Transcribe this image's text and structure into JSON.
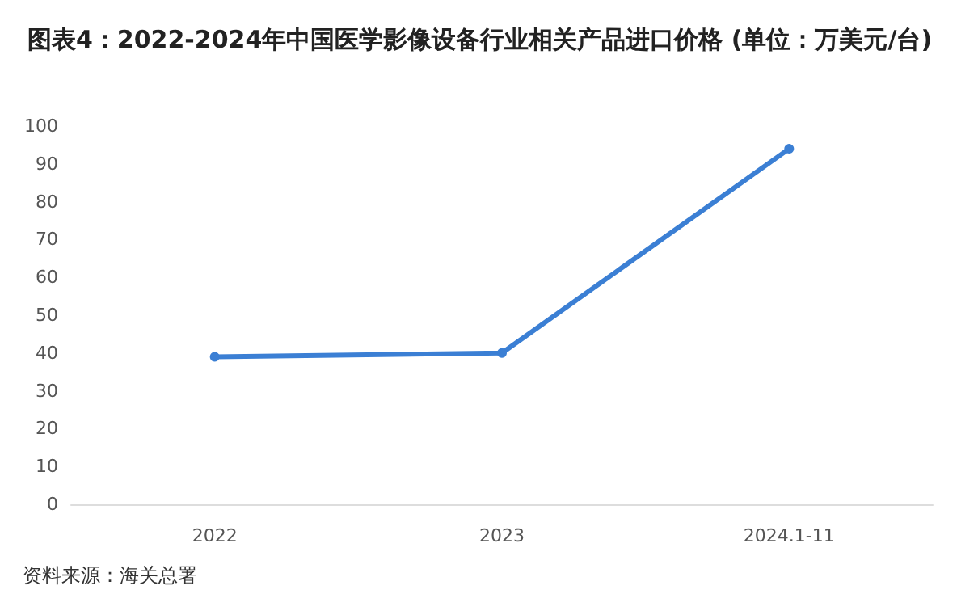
{
  "chart_data": {
    "type": "line",
    "title": "图表4：2022-2024年中国医学影像设备行业相关产品进口价格 (单位：万美元/台)",
    "categories": [
      "2022",
      "2023",
      "2024.1-11"
    ],
    "series": [
      {
        "color": "#3b7fd4",
        "values": [
          39,
          40,
          94
        ]
      }
    ],
    "ylim": [
      0,
      100
    ],
    "yticks": [
      0,
      10,
      20,
      30,
      40,
      50,
      60,
      70,
      80,
      90,
      100
    ],
    "grid": false,
    "marker": "circle",
    "line_style": "solid",
    "annotations": [
      "资料来源：海关总署"
    ]
  }
}
